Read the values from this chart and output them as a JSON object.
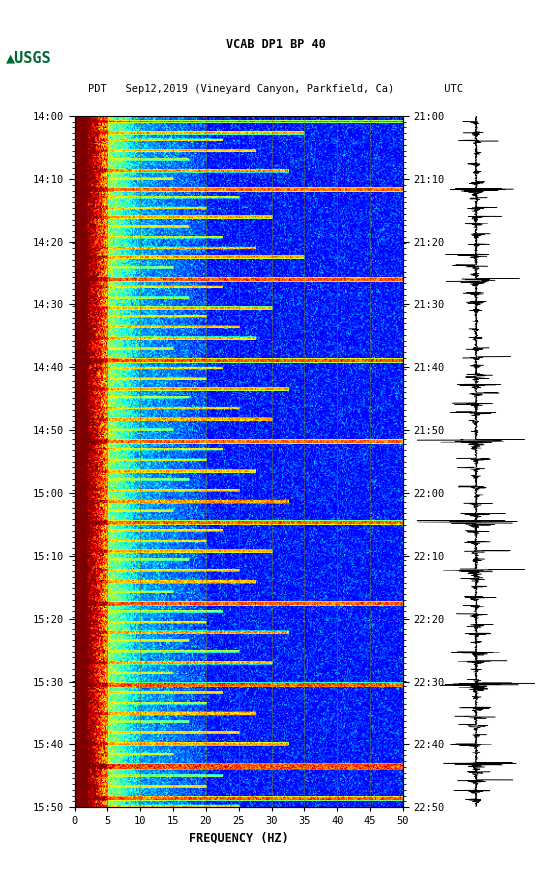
{
  "title_line1": "VCAB DP1 BP 40",
  "title_line2": "PDT   Sep12,2019 (Vineyard Canyon, Parkfield, Ca)        UTC",
  "left_times": [
    "14:00",
    "14:10",
    "14:20",
    "14:30",
    "14:40",
    "14:50",
    "15:00",
    "15:10",
    "15:20",
    "15:30",
    "15:40",
    "15:50"
  ],
  "right_times": [
    "21:00",
    "21:10",
    "21:20",
    "21:30",
    "21:40",
    "21:50",
    "22:00",
    "22:10",
    "22:20",
    "22:30",
    "22:40",
    "22:50"
  ],
  "freq_min": 0,
  "freq_max": 50,
  "freq_ticks": [
    0,
    5,
    10,
    15,
    20,
    25,
    30,
    35,
    40,
    45,
    50
  ],
  "xlabel": "FREQUENCY (HZ)",
  "bg_color": "#ffffff",
  "vertical_lines_x": [
    5,
    10,
    15,
    20,
    25,
    30,
    35,
    40,
    45
  ],
  "seed": 12345
}
